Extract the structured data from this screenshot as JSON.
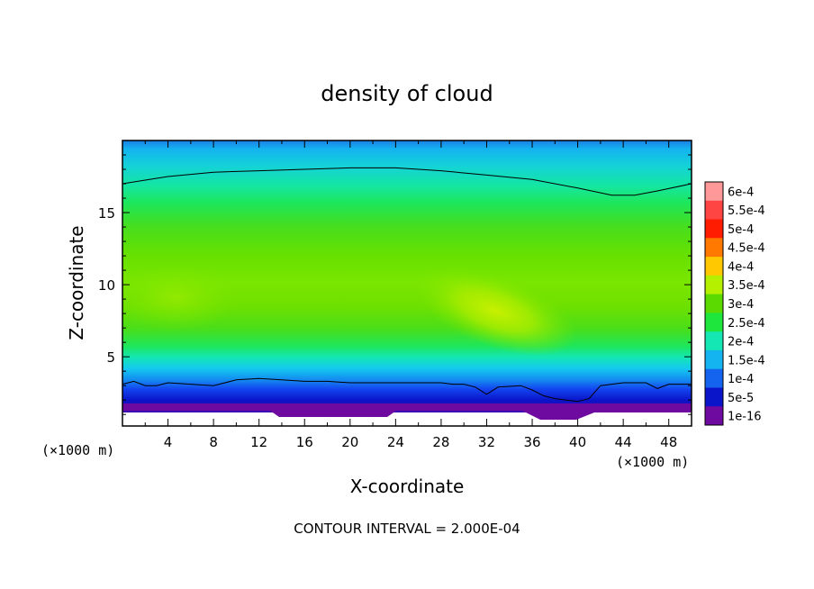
{
  "chart_data": {
    "type": "heatmap",
    "title": "density of cloud",
    "xlabel": "X-coordinate",
    "ylabel": "Z-coordinate",
    "x_unit": "(×1000 m)",
    "x_unit_right": "(×1000 m)",
    "xlim": [
      0,
      50
    ],
    "ylim": [
      0.2,
      20
    ],
    "x_ticks": [
      4,
      8,
      12,
      16,
      20,
      24,
      28,
      32,
      36,
      40,
      44,
      48
    ],
    "x_tick_labels": [
      "4",
      "8",
      "12",
      "16",
      "20",
      "24",
      "28",
      "32",
      "36",
      "40",
      "44",
      "48"
    ],
    "y_ticks": [
      5,
      10,
      15
    ],
    "y_tick_labels": [
      "5",
      "10",
      "15"
    ],
    "colorbar": {
      "labels": [
        "6e-4",
        "5.5e-4",
        "5e-4",
        "4.5e-4",
        "4e-4",
        "3.5e-4",
        "3e-4",
        "2.5e-4",
        "2e-4",
        "1.5e-4",
        "1e-4",
        "5e-5",
        "1e-16"
      ],
      "colors": [
        "#ff9999",
        "#ff4444",
        "#ff1c00",
        "#ff7800",
        "#ffc800",
        "#b4f000",
        "#5ada00",
        "#1ee63c",
        "#14e6b4",
        "#14b4f0",
        "#1464f0",
        "#0a14c8",
        "#6e0aa0"
      ]
    },
    "contour_interval_note": "CONTOUR INTERVAL = 2.000E-04",
    "contours": [
      {
        "level": "2e-4",
        "points": [
          [
            0,
            17.0
          ],
          [
            4,
            17.5
          ],
          [
            8,
            17.8
          ],
          [
            12,
            17.9
          ],
          [
            16,
            18.0
          ],
          [
            20,
            18.1
          ],
          [
            24,
            18.1
          ],
          [
            28,
            17.9
          ],
          [
            32,
            17.6
          ],
          [
            36,
            17.3
          ],
          [
            40,
            16.7
          ],
          [
            43,
            16.2
          ],
          [
            45,
            16.2
          ],
          [
            47,
            16.5
          ],
          [
            50,
            17.0
          ]
        ]
      },
      {
        "level": "2e-4",
        "points": [
          [
            0,
            3.1
          ],
          [
            1,
            3.3
          ],
          [
            2,
            3.0
          ],
          [
            3,
            3.0
          ],
          [
            4,
            3.2
          ],
          [
            6,
            3.1
          ],
          [
            8,
            3.0
          ],
          [
            10,
            3.4
          ],
          [
            12,
            3.5
          ],
          [
            14,
            3.4
          ],
          [
            16,
            3.3
          ],
          [
            18,
            3.3
          ],
          [
            20,
            3.2
          ],
          [
            22,
            3.2
          ],
          [
            24,
            3.2
          ],
          [
            26,
            3.2
          ],
          [
            28,
            3.2
          ],
          [
            29,
            3.1
          ],
          [
            30,
            3.1
          ],
          [
            31,
            2.9
          ],
          [
            32,
            2.4
          ],
          [
            33,
            2.9
          ],
          [
            35,
            3.0
          ],
          [
            36,
            2.7
          ],
          [
            37,
            2.3
          ],
          [
            38,
            2.1
          ],
          [
            39,
            2.0
          ],
          [
            40,
            1.9
          ],
          [
            41,
            2.1
          ],
          [
            42,
            3.0
          ],
          [
            44,
            3.2
          ],
          [
            46,
            3.2
          ],
          [
            47,
            2.8
          ],
          [
            48,
            3.1
          ],
          [
            50,
            3.1
          ]
        ]
      }
    ],
    "features": {
      "maximum": {
        "x": 34,
        "z": 8.0,
        "value": "4e-4"
      },
      "secondary": {
        "x": 4,
        "z": 8.5,
        "value": "3.5e-4"
      }
    }
  }
}
